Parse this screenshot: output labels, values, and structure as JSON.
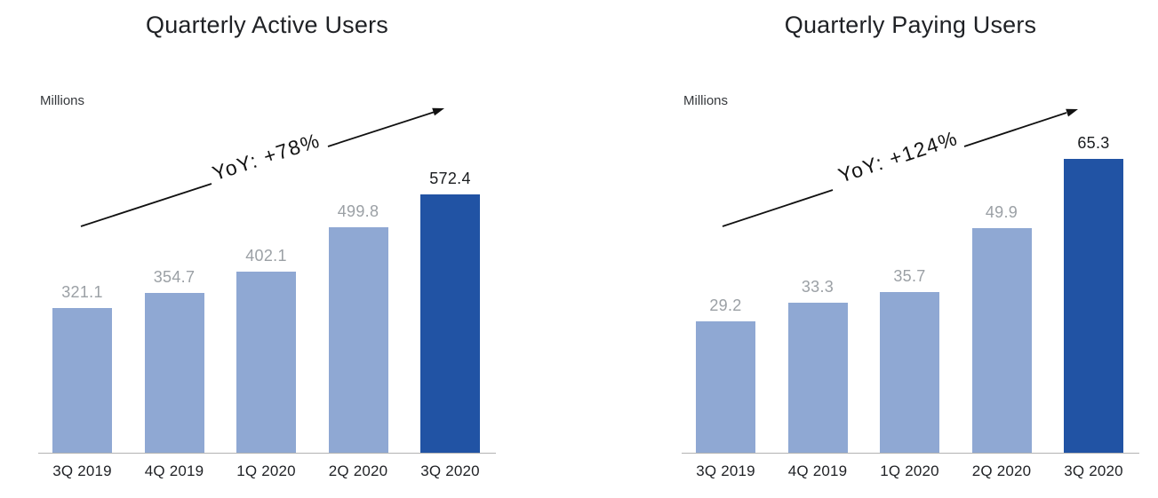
{
  "page": {
    "background": "#ffffff"
  },
  "chart_data": [
    {
      "type": "bar",
      "title": "Quarterly Active Users",
      "unit_label": "Millions",
      "categories": [
        "3Q 2019",
        "4Q 2019",
        "1Q 2020",
        "2Q 2020",
        "3Q 2020"
      ],
      "values": [
        321.1,
        354.7,
        402.1,
        499.8,
        572.4
      ],
      "annotation": "YoY: +78%",
      "ylim": [
        0,
        660
      ],
      "grid": false,
      "legend": "none",
      "highlight_index": 4,
      "bar_color": "#8FA8D3",
      "highlight_color": "#2153A4",
      "value_label_color": "#9BA0A5",
      "highlight_value_label_color": "#1A1C1F",
      "axis_line_color": "#B2B2B2"
    },
    {
      "type": "bar",
      "title": "Quarterly Paying Users",
      "unit_label": "Millions",
      "categories": [
        "3Q 2019",
        "4Q 2019",
        "1Q 2020",
        "2Q 2020",
        "3Q 2020"
      ],
      "values": [
        29.2,
        33.3,
        35.7,
        49.9,
        65.3
      ],
      "annotation": "YoY: +124%",
      "ylim": [
        0,
        66
      ],
      "grid": false,
      "legend": "none",
      "highlight_index": 4,
      "bar_color": "#8FA8D3",
      "highlight_color": "#2153A4",
      "value_label_color": "#9BA0A5",
      "highlight_value_label_color": "#1A1C1F",
      "axis_line_color": "#B2B2B2"
    }
  ]
}
